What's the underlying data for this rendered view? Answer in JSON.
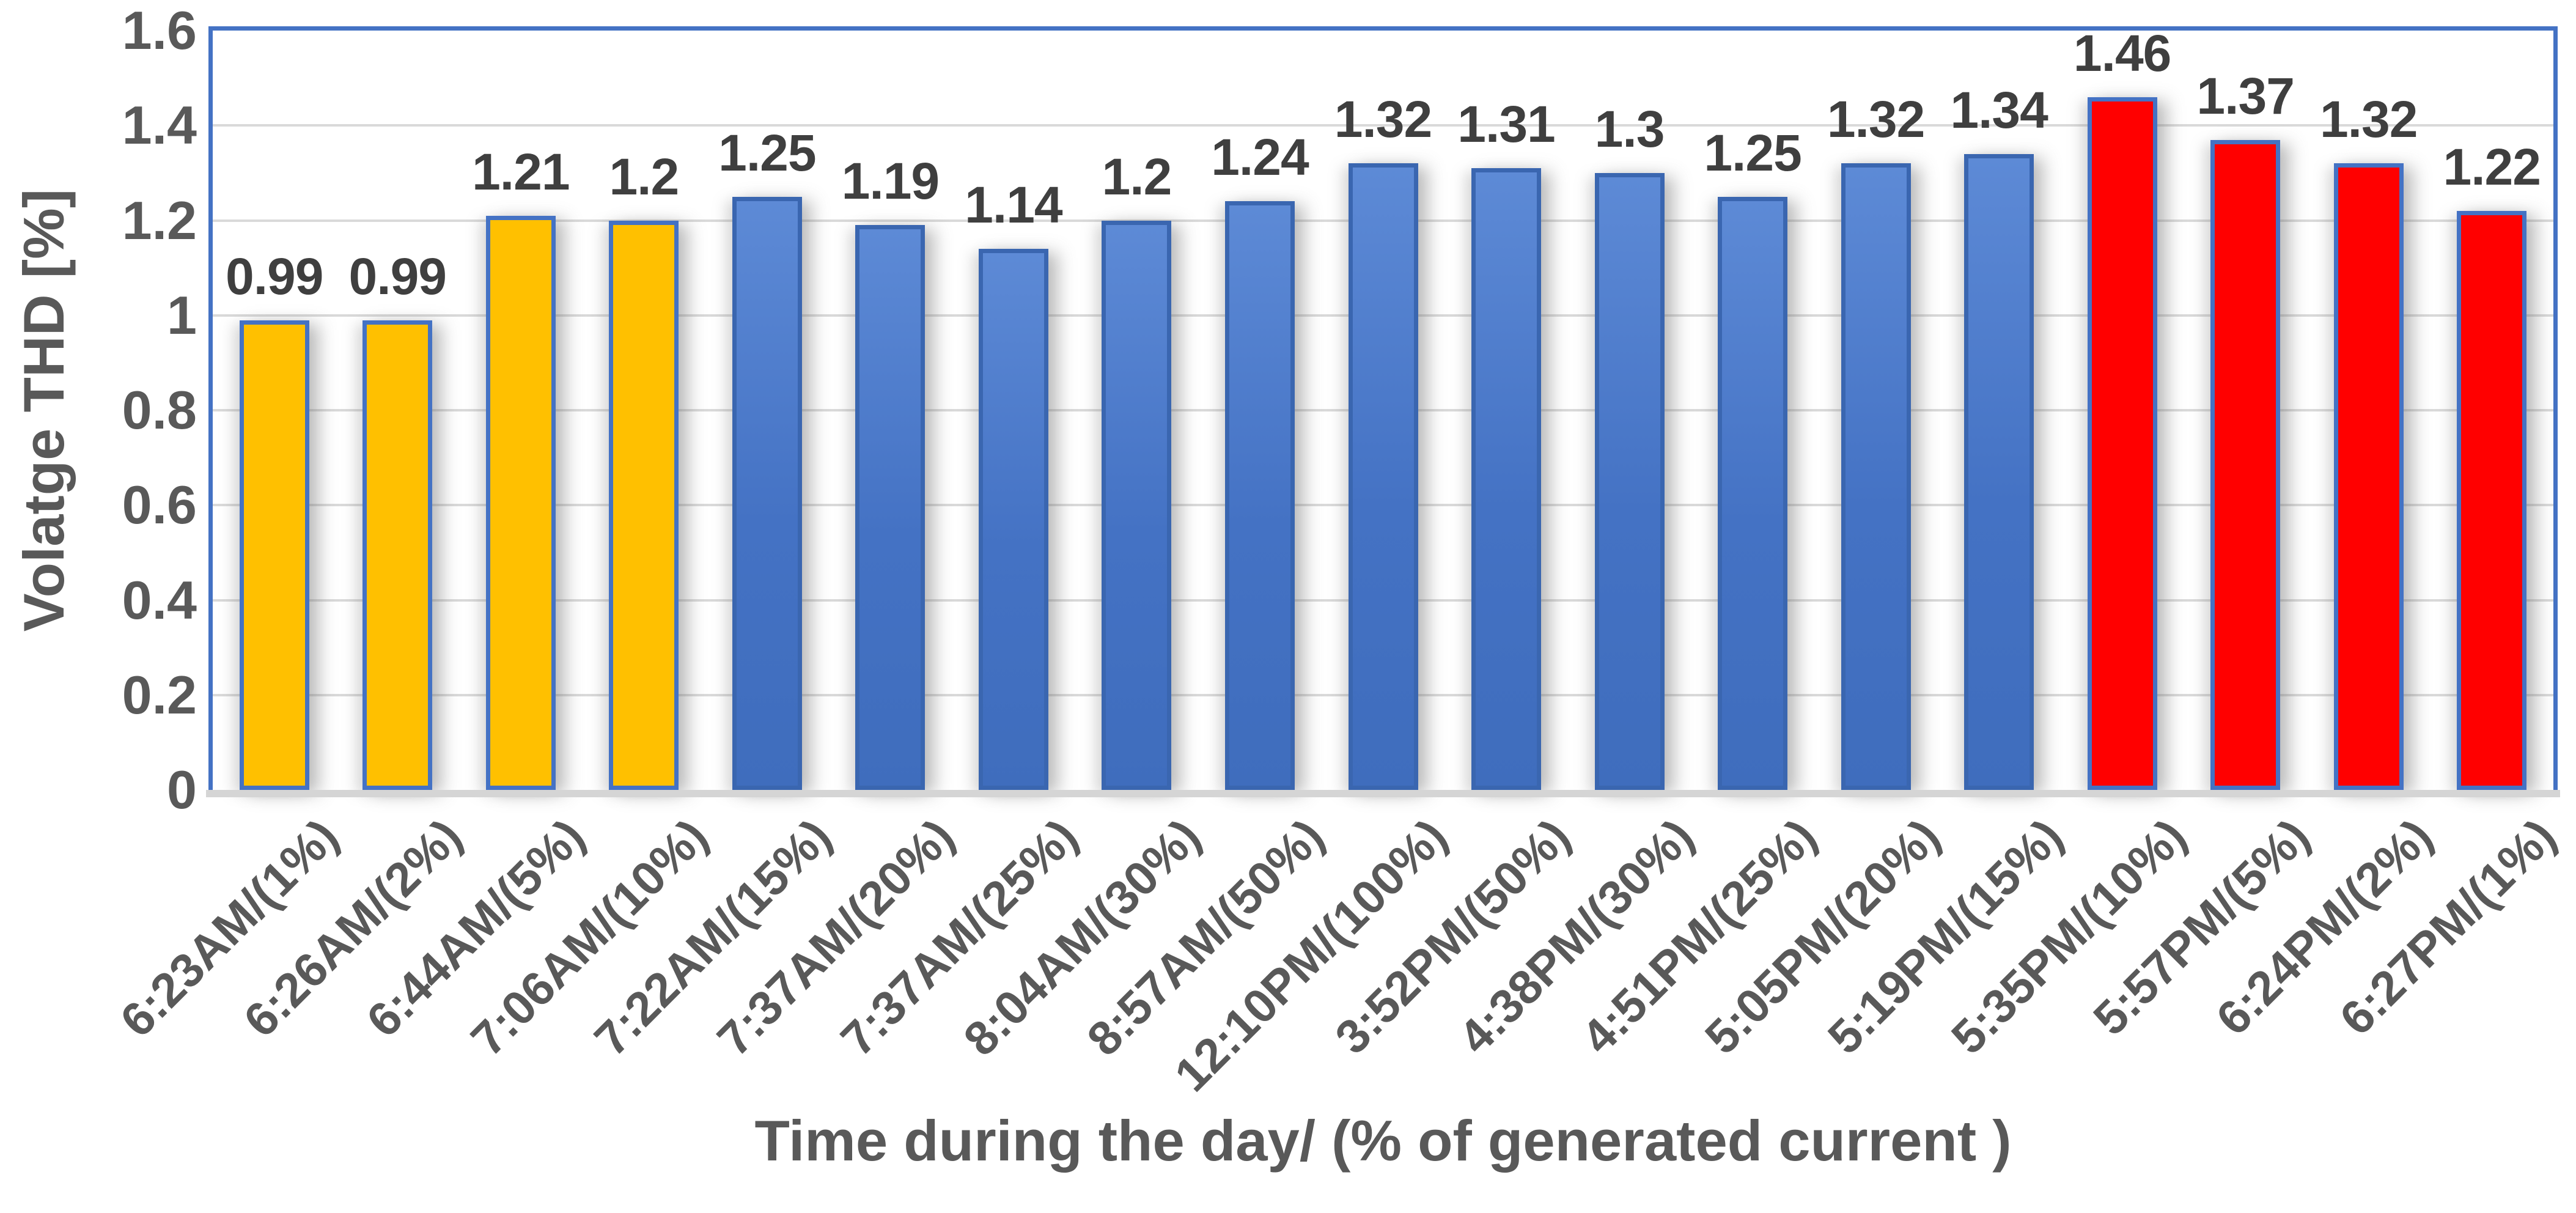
{
  "chart_data": {
    "type": "bar",
    "title": "",
    "xlabel": "Time during the day/ (% of generated current )",
    "ylabel": "Volatge THD [%]",
    "categories": [
      "6:23AM/(1%)",
      "6:26AM/(2%)",
      "6:44AM/(5%)",
      "7:06AM/(10%)",
      "7:22AM/(15%)",
      "7:37AM/(20%)",
      "7:37AM/(25%)",
      "8:04AM/(30%)",
      "8:57AM/(50%)",
      "12:10PM/(100%)",
      "3:52PM/(50%)",
      "4:38PM/(30%)",
      "4:51PM/(25%)",
      "5:05PM/(20%)",
      "5:19PM/(15%)",
      "5:35PM/(10%)",
      "5:57PM/(5%)",
      "6:24PM/(2%)",
      "6:27PM/(1%)"
    ],
    "values": [
      0.99,
      0.99,
      1.21,
      1.2,
      1.25,
      1.19,
      1.14,
      1.2,
      1.24,
      1.32,
      1.31,
      1.3,
      1.25,
      1.32,
      1.34,
      1.46,
      1.37,
      1.32,
      1.22
    ],
    "value_labels": [
      "0.99",
      "0.99",
      "1.21",
      "1.2",
      "1.25",
      "1.19",
      "1.14",
      "1.2",
      "1.24",
      "1.32",
      "1.31",
      "1.3",
      "1.25",
      "1.32",
      "1.34",
      "1.46",
      "1.37",
      "1.32",
      "1.22"
    ],
    "bar_color_keys": [
      "gold",
      "gold",
      "gold",
      "gold",
      "blue",
      "blue",
      "blue",
      "blue",
      "blue",
      "blue",
      "blue",
      "blue",
      "blue",
      "blue",
      "blue",
      "red",
      "red",
      "red",
      "red"
    ],
    "y_ticks": [
      "0",
      "0.2",
      "0.4",
      "0.6",
      "0.8",
      "1",
      "1.2",
      "1.4",
      "1.6"
    ],
    "ylim": [
      0,
      1.6
    ],
    "grid": "horizontal-major",
    "legend": "none",
    "colors": {
      "gold": "#FFC000",
      "blue": "#4472C4",
      "red": "#FF0000",
      "gold_border": "#4472C4",
      "blue_border": "#3A66B0",
      "red_border": "#4472C4",
      "blue_gradient_top": "#5D8AD6",
      "blue_gradient_bottom": "#3F6DBD",
      "plot_border": "#4472C4",
      "gridline": "#D9D9D9",
      "axis_line": "#D5D5D5",
      "tick_text": "#595959",
      "axis_title_text": "#595959",
      "data_label_text": "#3F3F3F"
    }
  }
}
